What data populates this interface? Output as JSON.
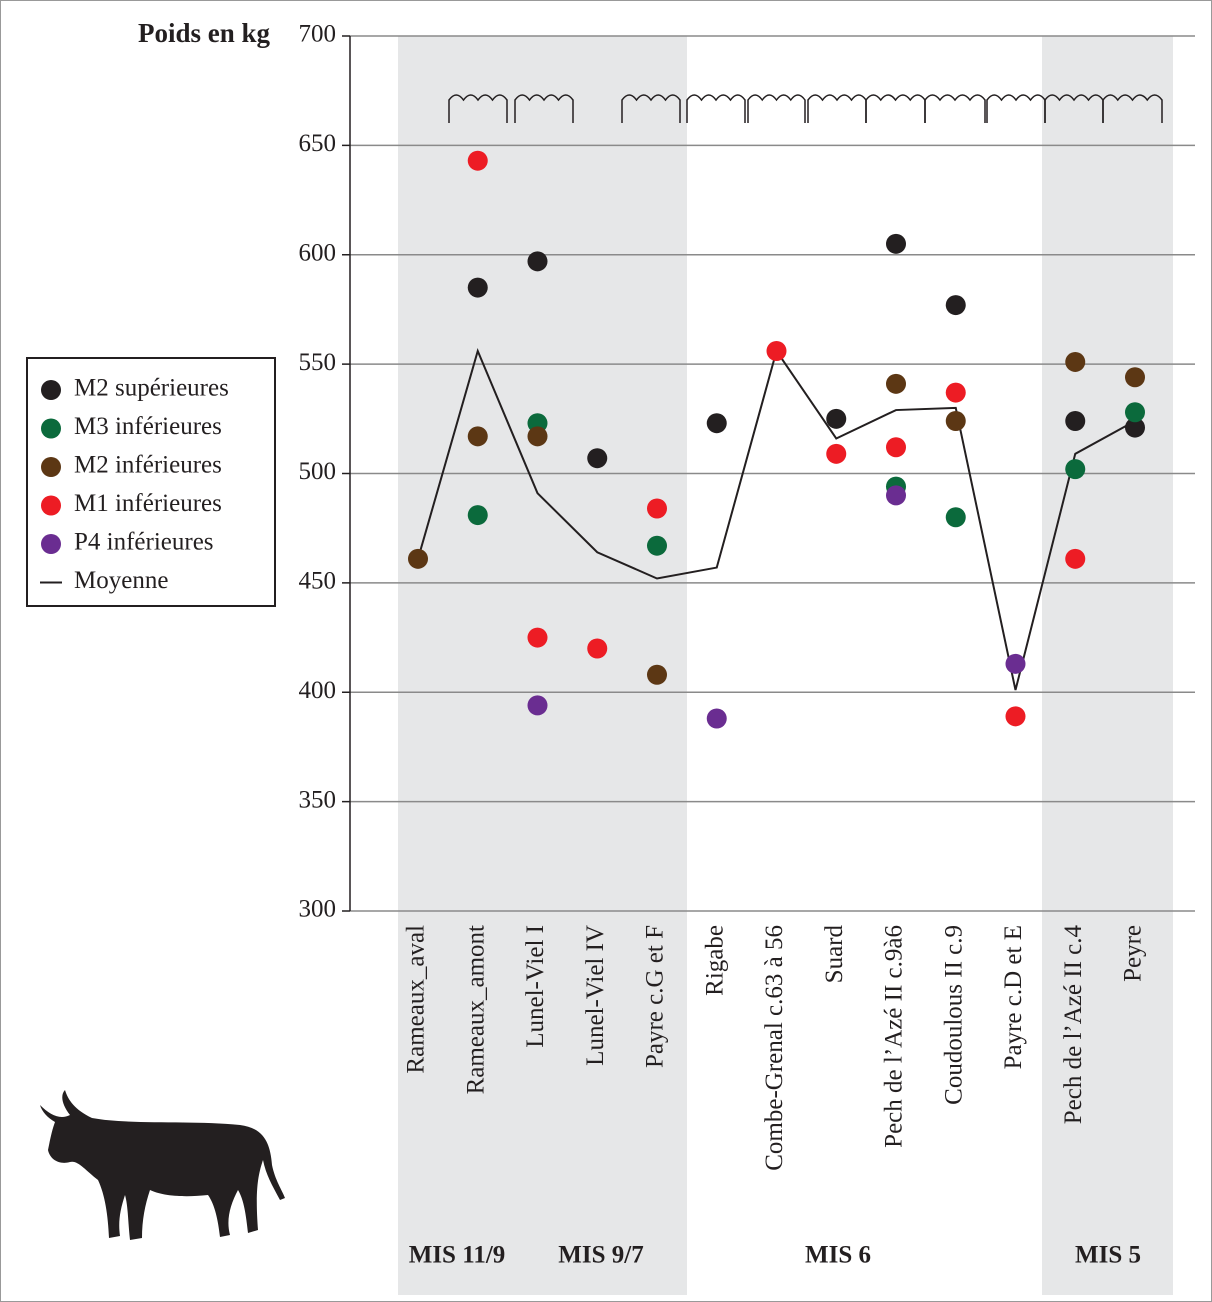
{
  "chart_data": {
    "type": "scatter",
    "y_axis_label": "Poids en kg",
    "categories": [
      "Rameaux_aval",
      "Rameaux_amont",
      "Lunel-Viel I",
      "Lunel-Viel IV",
      "Payre c.G et F",
      "Rigabe",
      "Combe-Grenal c.63 à 56",
      "Suard",
      "Pech de l’Azé II c.9à6",
      "Coudoulous II c.9",
      "Payre c.D et E",
      "Pech de l’Azé II c.4",
      "Peyre"
    ],
    "periods": [
      "MIS 11/9",
      "MIS 9/7",
      "MIS 6",
      "MIS 5"
    ],
    "ylim": [
      300,
      700
    ],
    "yticks": [
      300,
      350,
      400,
      450,
      500,
      550,
      600,
      650,
      700
    ],
    "grid": true,
    "legend": "left",
    "series": [
      {
        "name": "M2 supérieures",
        "color": "#231f20",
        "mode": "markers",
        "values": [
          null,
          585,
          597,
          507,
          null,
          523,
          null,
          525,
          605,
          577,
          null,
          524,
          521
        ]
      },
      {
        "name": "M3 inférieures",
        "color": "#0b6a3c",
        "mode": "markers",
        "values": [
          null,
          481,
          523,
          null,
          467,
          null,
          null,
          null,
          494,
          480,
          null,
          502,
          528
        ]
      },
      {
        "name": "M2 inférieures",
        "color": "#5c3714",
        "mode": "markers",
        "values": [
          461,
          517,
          517,
          null,
          408,
          null,
          null,
          null,
          541,
          524,
          null,
          551,
          544
        ]
      },
      {
        "name": "M1 inférieures",
        "color": "#ed1c24",
        "mode": "markers",
        "values": [
          null,
          643,
          425,
          420,
          484,
          null,
          556,
          509,
          512,
          537,
          389,
          461,
          null
        ]
      },
      {
        "name": "P4 inférieures",
        "color": "#6a2d91",
        "mode": "markers",
        "values": [
          null,
          null,
          394,
          null,
          null,
          388,
          null,
          null,
          490,
          null,
          413,
          null,
          null
        ]
      },
      {
        "name": "Moyenne",
        "color": "#231f20",
        "mode": "lines",
        "values": [
          461,
          556,
          491,
          464,
          452,
          457,
          556,
          516,
          529,
          530,
          401,
          509,
          524
        ]
      }
    ]
  }
}
